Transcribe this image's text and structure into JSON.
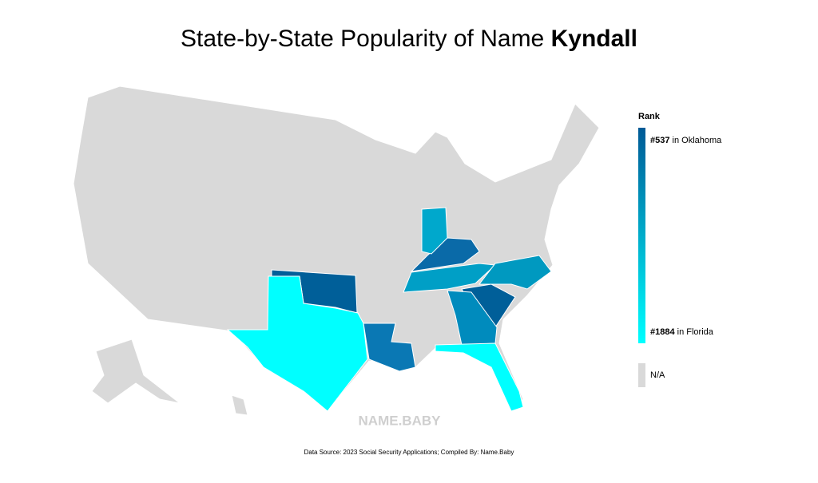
{
  "title": {
    "text": "State-by-State Popularity of Name ",
    "name": "Kyndall"
  },
  "legend": {
    "title": "Rank",
    "top": {
      "rank": "#537",
      "text": " in Oklahoma",
      "color": "#005a96"
    },
    "bottom": {
      "rank": "#1884",
      "text": " in Florida",
      "color": "#00ffff"
    },
    "na": {
      "label": "N/A",
      "color": "#d9d9d9"
    }
  },
  "states": [
    {
      "color": "#005f99"
    },
    {
      "color": "#00ffff"
    },
    {
      "color": "#0a78b4"
    },
    {
      "color": "#0a6aa8"
    },
    {
      "color": "#00a8cc"
    },
    {
      "color": "#009fc6"
    },
    {
      "color": "#0099c0"
    },
    {
      "color": "#005f99"
    },
    {
      "color": "#008bbd"
    },
    {
      "color": "#00ffff"
    }
  ],
  "watermark": "NAME.BABY",
  "source": "Data Source: 2023 Social Security Applications; Compiled By: Name.Baby"
}
